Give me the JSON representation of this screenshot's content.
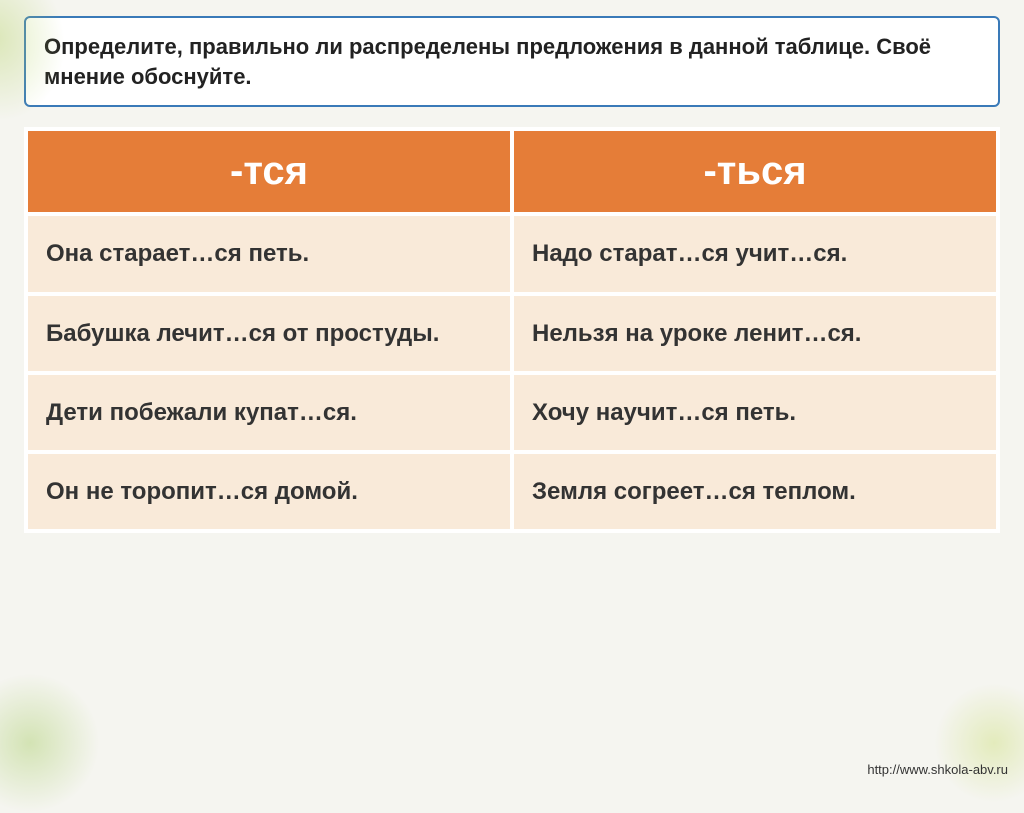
{
  "instruction": "Определите, правильно ли распределены предложения в данной таблице. Своё мнение обоснуйте.",
  "table": {
    "headers": {
      "col1": "-тся",
      "col2": "-ться"
    },
    "rows": [
      {
        "col1": "Она старает…ся петь.",
        "col2": "Надо старат…ся учит…ся."
      },
      {
        "col1": "Бабушка лечит…ся от простуды.",
        "col2": "Нельзя на уроке ленит…ся."
      },
      {
        "col1": "Дети побежали купат…ся.",
        "col2": "Хочу научит…ся петь."
      },
      {
        "col1": "Он не торопит…ся домой.",
        "col2": "Земля согреет…ся теплом."
      }
    ],
    "styling": {
      "header_bg": "#e57d38",
      "header_text_color": "#ffffff",
      "header_fontsize": 40,
      "cell_bg": "#f9ead9",
      "cell_text_color": "#333333",
      "cell_fontsize": 24,
      "instruction_border": "#3a7ab8",
      "instruction_fontsize": 22,
      "border_spacing": 4
    }
  },
  "footer": {
    "url": "http://www.shkola-abv.ru"
  }
}
